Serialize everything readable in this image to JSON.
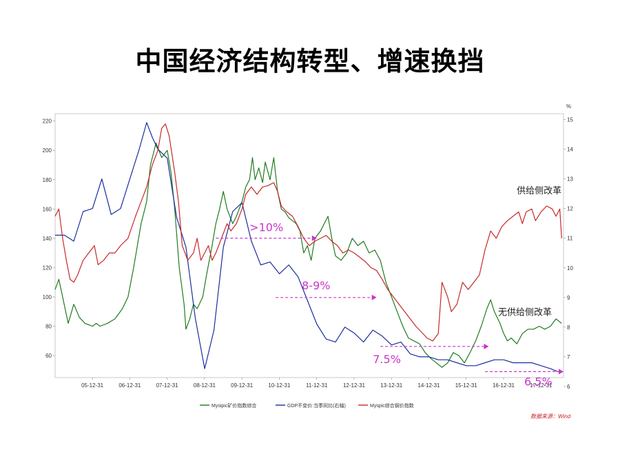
{
  "page_title": "中国经济结构转型、增速换挡",
  "chart_data": {
    "type": "line",
    "x_tick_labels": [
      "05-12-31",
      "06-12-31",
      "07-12-31",
      "08-12-31",
      "09-12-31",
      "10-12-31",
      "11-12-31",
      "12-12-31",
      "13-12-31",
      "14-12-31",
      "15-12-31",
      "16-12-31",
      "17-12-31"
    ],
    "left_axis": {
      "ticks": [
        "220",
        "200",
        "180",
        "160",
        "140",
        "120",
        "100",
        "80",
        "60"
      ],
      "ylim": [
        45,
        225
      ]
    },
    "right_axis": {
      "unit": "%",
      "ticks": [
        "15",
        "14",
        "13",
        "12",
        "11",
        "10",
        "9",
        "8",
        "7",
        "6"
      ],
      "ylim": [
        6.3,
        15.2
      ]
    },
    "series": [
      {
        "name": "Mysipic矿价指数综合",
        "axis": "left",
        "color": "#1e7b1e",
        "points": [
          [
            2005.0,
            105
          ],
          [
            2005.1,
            112
          ],
          [
            2005.2,
            100
          ],
          [
            2005.35,
            82
          ],
          [
            2005.5,
            95
          ],
          [
            2005.65,
            86
          ],
          [
            2005.8,
            82
          ],
          [
            2006.0,
            80
          ],
          [
            2006.1,
            82
          ],
          [
            2006.2,
            80
          ],
          [
            2006.4,
            82
          ],
          [
            2006.6,
            85
          ],
          [
            2006.8,
            92
          ],
          [
            2006.95,
            100
          ],
          [
            2007.1,
            120
          ],
          [
            2007.3,
            150
          ],
          [
            2007.45,
            165
          ],
          [
            2007.55,
            190
          ],
          [
            2007.7,
            205
          ],
          [
            2007.85,
            195
          ],
          [
            2008.0,
            200
          ],
          [
            2008.1,
            185
          ],
          [
            2008.2,
            160
          ],
          [
            2008.32,
            120
          ],
          [
            2008.45,
            95
          ],
          [
            2008.5,
            78
          ],
          [
            2008.6,
            85
          ],
          [
            2008.7,
            95
          ],
          [
            2008.8,
            92
          ],
          [
            2008.95,
            100
          ],
          [
            2009.05,
            115
          ],
          [
            2009.2,
            135
          ],
          [
            2009.3,
            150
          ],
          [
            2009.4,
            160
          ],
          [
            2009.5,
            172
          ],
          [
            2009.6,
            160
          ],
          [
            2009.75,
            150
          ],
          [
            2009.85,
            155
          ],
          [
            2010.0,
            165
          ],
          [
            2010.1,
            175
          ],
          [
            2010.2,
            180
          ],
          [
            2010.28,
            195
          ],
          [
            2010.35,
            180
          ],
          [
            2010.45,
            188
          ],
          [
            2010.55,
            178
          ],
          [
            2010.62,
            192
          ],
          [
            2010.75,
            180
          ],
          [
            2010.85,
            195
          ],
          [
            2010.95,
            172
          ],
          [
            2011.05,
            160
          ],
          [
            2011.15,
            158
          ],
          [
            2011.25,
            154
          ],
          [
            2011.35,
            152
          ],
          [
            2011.45,
            150
          ],
          [
            2011.55,
            145
          ],
          [
            2011.65,
            130
          ],
          [
            2011.75,
            135
          ],
          [
            2011.85,
            125
          ],
          [
            2011.95,
            140
          ],
          [
            2012.1,
            145
          ],
          [
            2012.2,
            150
          ],
          [
            2012.3,
            155
          ],
          [
            2012.4,
            140
          ],
          [
            2012.5,
            128
          ],
          [
            2012.65,
            125
          ],
          [
            2012.8,
            130
          ],
          [
            2012.95,
            140
          ],
          [
            2013.1,
            135
          ],
          [
            2013.25,
            138
          ],
          [
            2013.4,
            130
          ],
          [
            2013.55,
            132
          ],
          [
            2013.7,
            125
          ],
          [
            2013.85,
            110
          ],
          [
            2014.0,
            100
          ],
          [
            2014.15,
            90
          ],
          [
            2014.3,
            80
          ],
          [
            2014.45,
            72
          ],
          [
            2014.6,
            70
          ],
          [
            2014.75,
            68
          ],
          [
            2014.9,
            62
          ],
          [
            2015.05,
            58
          ],
          [
            2015.2,
            55
          ],
          [
            2015.35,
            52
          ],
          [
            2015.5,
            55
          ],
          [
            2015.65,
            62
          ],
          [
            2015.8,
            60
          ],
          [
            2015.95,
            55
          ],
          [
            2016.1,
            62
          ],
          [
            2016.25,
            70
          ],
          [
            2016.4,
            80
          ],
          [
            2016.55,
            92
          ],
          [
            2016.65,
            98
          ],
          [
            2016.75,
            90
          ],
          [
            2016.9,
            82
          ],
          [
            2017.0,
            75
          ],
          [
            2017.1,
            70
          ],
          [
            2017.2,
            72
          ],
          [
            2017.35,
            68
          ],
          [
            2017.5,
            75
          ],
          [
            2017.65,
            78
          ],
          [
            2017.8,
            78
          ],
          [
            2017.95,
            80
          ],
          [
            2018.1,
            78
          ],
          [
            2018.25,
            80
          ],
          [
            2018.4,
            85
          ],
          [
            2018.55,
            82
          ]
        ]
      },
      {
        "name": "GDP不变价:当季同比(右轴)",
        "axis": "right",
        "color": "#1a2d9c",
        "points": [
          [
            2005.0,
            11.1
          ],
          [
            2005.25,
            11.1
          ],
          [
            2005.5,
            10.9
          ],
          [
            2005.75,
            11.9
          ],
          [
            2006.0,
            12.0
          ],
          [
            2006.25,
            13.0
          ],
          [
            2006.5,
            11.8
          ],
          [
            2006.75,
            12.0
          ],
          [
            2007.0,
            13.0
          ],
          [
            2007.25,
            14.0
          ],
          [
            2007.45,
            14.9
          ],
          [
            2007.6,
            14.4
          ],
          [
            2007.75,
            14.0
          ],
          [
            2008.0,
            13.7
          ],
          [
            2008.25,
            11.7
          ],
          [
            2008.5,
            10.7
          ],
          [
            2008.75,
            8.3
          ],
          [
            2009.0,
            6.6
          ],
          [
            2009.25,
            7.9
          ],
          [
            2009.5,
            10.7
          ],
          [
            2009.75,
            11.9
          ],
          [
            2010.0,
            12.2
          ],
          [
            2010.25,
            10.9
          ],
          [
            2010.5,
            10.1
          ],
          [
            2010.75,
            10.2
          ],
          [
            2011.0,
            9.8
          ],
          [
            2011.25,
            10.1
          ],
          [
            2011.5,
            9.7
          ],
          [
            2011.75,
            8.9
          ],
          [
            2012.0,
            8.1
          ],
          [
            2012.25,
            7.6
          ],
          [
            2012.5,
            7.5
          ],
          [
            2012.75,
            8.0
          ],
          [
            2013.0,
            7.8
          ],
          [
            2013.25,
            7.5
          ],
          [
            2013.5,
            7.9
          ],
          [
            2013.75,
            7.7
          ],
          [
            2014.0,
            7.4
          ],
          [
            2014.25,
            7.5
          ],
          [
            2014.5,
            7.1
          ],
          [
            2014.75,
            7.0
          ],
          [
            2015.0,
            7.0
          ],
          [
            2015.25,
            6.9
          ],
          [
            2015.5,
            6.9
          ],
          [
            2015.75,
            6.8
          ],
          [
            2016.0,
            6.7
          ],
          [
            2016.25,
            6.7
          ],
          [
            2016.5,
            6.8
          ],
          [
            2016.75,
            6.9
          ],
          [
            2017.0,
            6.9
          ],
          [
            2017.25,
            6.8
          ],
          [
            2017.5,
            6.8
          ],
          [
            2017.75,
            6.8
          ],
          [
            2018.0,
            6.7
          ],
          [
            2018.25,
            6.6
          ],
          [
            2018.45,
            6.5
          ]
        ]
      },
      {
        "name": "Myspic综合钢价指数",
        "axis": "left",
        "color": "#c62828",
        "points": [
          [
            2005.0,
            155
          ],
          [
            2005.1,
            160
          ],
          [
            2005.2,
            140
          ],
          [
            2005.3,
            125
          ],
          [
            2005.4,
            112
          ],
          [
            2005.5,
            110
          ],
          [
            2005.6,
            115
          ],
          [
            2005.75,
            125
          ],
          [
            2005.9,
            130
          ],
          [
            2006.05,
            135
          ],
          [
            2006.15,
            122
          ],
          [
            2006.3,
            125
          ],
          [
            2006.45,
            130
          ],
          [
            2006.6,
            130
          ],
          [
            2006.75,
            135
          ],
          [
            2006.95,
            140
          ],
          [
            2007.15,
            155
          ],
          [
            2007.3,
            165
          ],
          [
            2007.45,
            175
          ],
          [
            2007.6,
            190
          ],
          [
            2007.75,
            200
          ],
          [
            2007.85,
            215
          ],
          [
            2007.95,
            218
          ],
          [
            2008.05,
            210
          ],
          [
            2008.2,
            185
          ],
          [
            2008.3,
            165
          ],
          [
            2008.4,
            135
          ],
          [
            2008.55,
            125
          ],
          [
            2008.7,
            130
          ],
          [
            2008.8,
            140
          ],
          [
            2008.9,
            125
          ],
          [
            2009.0,
            130
          ],
          [
            2009.1,
            135
          ],
          [
            2009.2,
            125
          ],
          [
            2009.3,
            130
          ],
          [
            2009.45,
            140
          ],
          [
            2009.6,
            150
          ],
          [
            2009.7,
            145
          ],
          [
            2009.85,
            150
          ],
          [
            2010.0,
            160
          ],
          [
            2010.1,
            170
          ],
          [
            2010.25,
            175
          ],
          [
            2010.4,
            170
          ],
          [
            2010.55,
            175
          ],
          [
            2010.7,
            176
          ],
          [
            2010.85,
            178
          ],
          [
            2010.95,
            172
          ],
          [
            2011.05,
            162
          ],
          [
            2011.2,
            158
          ],
          [
            2011.35,
            155
          ],
          [
            2011.5,
            148
          ],
          [
            2011.65,
            140
          ],
          [
            2011.8,
            135
          ],
          [
            2011.95,
            138
          ],
          [
            2012.1,
            140
          ],
          [
            2012.25,
            142
          ],
          [
            2012.4,
            138
          ],
          [
            2012.55,
            135
          ],
          [
            2012.7,
            130
          ],
          [
            2012.85,
            132
          ],
          [
            2013.0,
            130
          ],
          [
            2013.15,
            127
          ],
          [
            2013.3,
            124
          ],
          [
            2013.45,
            120
          ],
          [
            2013.6,
            118
          ],
          [
            2013.75,
            112
          ],
          [
            2013.9,
            105
          ],
          [
            2014.05,
            100
          ],
          [
            2014.2,
            95
          ],
          [
            2014.35,
            90
          ],
          [
            2014.5,
            85
          ],
          [
            2014.65,
            80
          ],
          [
            2014.8,
            76
          ],
          [
            2014.95,
            72
          ],
          [
            2015.1,
            70
          ],
          [
            2015.25,
            75
          ],
          [
            2015.35,
            110
          ],
          [
            2015.5,
            100
          ],
          [
            2015.6,
            90
          ],
          [
            2015.75,
            95
          ],
          [
            2015.9,
            110
          ],
          [
            2016.05,
            105
          ],
          [
            2016.2,
            110
          ],
          [
            2016.35,
            115
          ],
          [
            2016.5,
            132
          ],
          [
            2016.65,
            145
          ],
          [
            2016.8,
            140
          ],
          [
            2016.95,
            148
          ],
          [
            2017.1,
            152
          ],
          [
            2017.25,
            155
          ],
          [
            2017.4,
            158
          ],
          [
            2017.5,
            150
          ],
          [
            2017.6,
            158
          ],
          [
            2017.75,
            160
          ],
          [
            2017.85,
            152
          ],
          [
            2018.0,
            158
          ],
          [
            2018.15,
            162
          ],
          [
            2018.3,
            160
          ],
          [
            2018.4,
            155
          ],
          [
            2018.5,
            160
          ],
          [
            2018.55,
            140
          ]
        ]
      }
    ],
    "annotations": {
      "gt10": ">10%",
      "r89": "8-9%",
      "r75": "7.5%",
      "r65": "6.5%",
      "supply": "供给侧改革",
      "no_supply": "无供给侧改革"
    },
    "legend": [
      {
        "name": "Mysipic矿价指数综合",
        "color": "#1e7b1e"
      },
      {
        "name": "GDP不变价:当季同比(右轴)",
        "color": "#1a2d9c"
      },
      {
        "name": "Myspic综合钢价指数",
        "color": "#c62828"
      }
    ],
    "source": "数据来源：Wind",
    "x_range": [
      2005.0,
      2018.6
    ]
  }
}
